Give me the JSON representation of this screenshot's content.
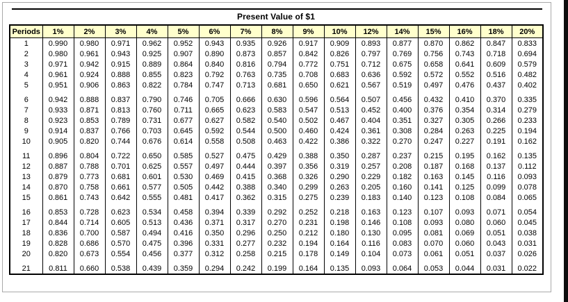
{
  "title": "Present Value of $1",
  "table": {
    "headers": [
      "Periods",
      "1%",
      "2%",
      "3%",
      "4%",
      "5%",
      "6%",
      "7%",
      "8%",
      "9%",
      "10%",
      "12%",
      "14%",
      "15%",
      "16%",
      "18%",
      "20%"
    ],
    "rows": [
      [
        "1",
        "0.990",
        "0.980",
        "0.971",
        "0.962",
        "0.952",
        "0.943",
        "0.935",
        "0.926",
        "0.917",
        "0.909",
        "0.893",
        "0.877",
        "0.870",
        "0.862",
        "0.847",
        "0.833"
      ],
      [
        "2",
        "0.980",
        "0.961",
        "0.943",
        "0.925",
        "0.907",
        "0.890",
        "0.873",
        "0.857",
        "0.842",
        "0.826",
        "0.797",
        "0.769",
        "0.756",
        "0.743",
        "0.718",
        "0.694"
      ],
      [
        "3",
        "0.971",
        "0.942",
        "0.915",
        "0.889",
        "0.864",
        "0.840",
        "0.816",
        "0.794",
        "0.772",
        "0.751",
        "0.712",
        "0.675",
        "0.658",
        "0.641",
        "0.609",
        "0.579"
      ],
      [
        "4",
        "0.961",
        "0.924",
        "0.888",
        "0.855",
        "0.823",
        "0.792",
        "0.763",
        "0.735",
        "0.708",
        "0.683",
        "0.636",
        "0.592",
        "0.572",
        "0.552",
        "0.516",
        "0.482"
      ],
      [
        "5",
        "0.951",
        "0.906",
        "0.863",
        "0.822",
        "0.784",
        "0.747",
        "0.713",
        "0.681",
        "0.650",
        "0.621",
        "0.567",
        "0.519",
        "0.497",
        "0.476",
        "0.437",
        "0.402"
      ],
      [
        "6",
        "0.942",
        "0.888",
        "0.837",
        "0.790",
        "0.746",
        "0.705",
        "0.666",
        "0.630",
        "0.596",
        "0.564",
        "0.507",
        "0.456",
        "0.432",
        "0.410",
        "0.370",
        "0.335"
      ],
      [
        "7",
        "0.933",
        "0.871",
        "0.813",
        "0.760",
        "0.711",
        "0.665",
        "0.623",
        "0.583",
        "0.547",
        "0.513",
        "0.452",
        "0.400",
        "0.376",
        "0.354",
        "0.314",
        "0.279"
      ],
      [
        "8",
        "0.923",
        "0.853",
        "0.789",
        "0.731",
        "0.677",
        "0.627",
        "0.582",
        "0.540",
        "0.502",
        "0.467",
        "0.404",
        "0.351",
        "0.327",
        "0.305",
        "0.266",
        "0.233"
      ],
      [
        "9",
        "0.914",
        "0.837",
        "0.766",
        "0.703",
        "0.645",
        "0.592",
        "0.544",
        "0.500",
        "0.460",
        "0.424",
        "0.361",
        "0.308",
        "0.284",
        "0.263",
        "0.225",
        "0.194"
      ],
      [
        "10",
        "0.905",
        "0.820",
        "0.744",
        "0.676",
        "0.614",
        "0.558",
        "0.508",
        "0.463",
        "0.422",
        "0.386",
        "0.322",
        "0.270",
        "0.247",
        "0.227",
        "0.191",
        "0.162"
      ],
      [
        "11",
        "0.896",
        "0.804",
        "0.722",
        "0.650",
        "0.585",
        "0.527",
        "0.475",
        "0.429",
        "0.388",
        "0.350",
        "0.287",
        "0.237",
        "0.215",
        "0.195",
        "0.162",
        "0.135"
      ],
      [
        "12",
        "0.887",
        "0.788",
        "0.701",
        "0.625",
        "0.557",
        "0.497",
        "0.444",
        "0.397",
        "0.356",
        "0.319",
        "0.257",
        "0.208",
        "0.187",
        "0.168",
        "0.137",
        "0.112"
      ],
      [
        "13",
        "0.879",
        "0.773",
        "0.681",
        "0.601",
        "0.530",
        "0.469",
        "0.415",
        "0.368",
        "0.326",
        "0.290",
        "0.229",
        "0.182",
        "0.163",
        "0.145",
        "0.116",
        "0.093"
      ],
      [
        "14",
        "0.870",
        "0.758",
        "0.661",
        "0.577",
        "0.505",
        "0.442",
        "0.388",
        "0.340",
        "0.299",
        "0.263",
        "0.205",
        "0.160",
        "0.141",
        "0.125",
        "0.099",
        "0.078"
      ],
      [
        "15",
        "0.861",
        "0.743",
        "0.642",
        "0.555",
        "0.481",
        "0.417",
        "0.362",
        "0.315",
        "0.275",
        "0.239",
        "0.183",
        "0.140",
        "0.123",
        "0.108",
        "0.084",
        "0.065"
      ],
      [
        "16",
        "0.853",
        "0.728",
        "0.623",
        "0.534",
        "0.458",
        "0.394",
        "0.339",
        "0.292",
        "0.252",
        "0.218",
        "0.163",
        "0.123",
        "0.107",
        "0.093",
        "0.071",
        "0.054"
      ],
      [
        "17",
        "0.844",
        "0.714",
        "0.605",
        "0.513",
        "0.436",
        "0.371",
        "0.317",
        "0.270",
        "0.231",
        "0.198",
        "0.146",
        "0.108",
        "0.093",
        "0.080",
        "0.060",
        "0.045"
      ],
      [
        "18",
        "0.836",
        "0.700",
        "0.587",
        "0.494",
        "0.416",
        "0.350",
        "0.296",
        "0.250",
        "0.212",
        "0.180",
        "0.130",
        "0.095",
        "0.081",
        "0.069",
        "0.051",
        "0.038"
      ],
      [
        "19",
        "0.828",
        "0.686",
        "0.570",
        "0.475",
        "0.396",
        "0.331",
        "0.277",
        "0.232",
        "0.194",
        "0.164",
        "0.116",
        "0.083",
        "0.070",
        "0.060",
        "0.043",
        "0.031"
      ],
      [
        "20",
        "0.820",
        "0.673",
        "0.554",
        "0.456",
        "0.377",
        "0.312",
        "0.258",
        "0.215",
        "0.178",
        "0.149",
        "0.104",
        "0.073",
        "0.061",
        "0.051",
        "0.037",
        "0.026"
      ],
      [
        "21",
        "0.811",
        "0.660",
        "0.538",
        "0.439",
        "0.359",
        "0.294",
        "0.242",
        "0.199",
        "0.164",
        "0.135",
        "0.093",
        "0.064",
        "0.053",
        "0.044",
        "0.031",
        "0.022"
      ]
    ]
  },
  "colors": {
    "header_bg": "#FFFFCC",
    "table_border": "#000000",
    "page_frame": "#A9A9A9",
    "edge_bar": "#0D0D0D"
  }
}
